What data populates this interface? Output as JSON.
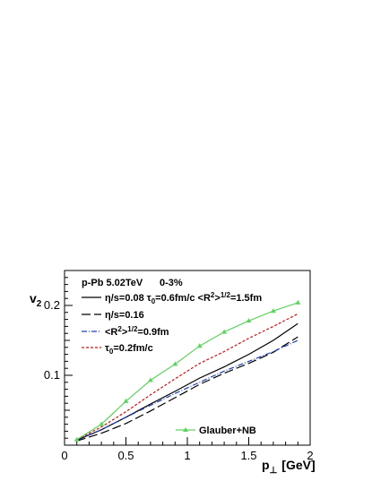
{
  "chart_data": {
    "type": "line",
    "header": {
      "system": "p-Pb 5.02TeV",
      "centrality": "0-3%"
    },
    "xlabel": "p",
    "xlabel_sub": "⊥",
    "xlabel_unit": "[GeV]",
    "ylabel": "v",
    "ylabel_sub": "2",
    "xlim": [
      0,
      2
    ],
    "ylim": [
      0,
      0.25
    ],
    "x_ticks": [
      0,
      0.5,
      1,
      1.5,
      2
    ],
    "x_tick_labels": [
      "0",
      "0.5",
      "1",
      "1.5",
      "2"
    ],
    "y_ticks": [
      0.1,
      0.2
    ],
    "y_tick_labels": [
      "0.1",
      "0.2"
    ],
    "legend": [
      {
        "id": "l1",
        "text": "η/s=0.08  τ",
        "sub": "0",
        "text2": "=0.6fm/c  <R",
        "sup": "2",
        "text3": ">",
        "sup2": "1/2",
        "text4": "=1.5fm"
      },
      {
        "id": "l2",
        "text": "η/s=0.16"
      },
      {
        "id": "l3",
        "text": "<R",
        "sup": "2",
        "text3": ">",
        "sup2": "1/2",
        "text4": "=0.9fm"
      },
      {
        "id": "l4",
        "text": "τ",
        "sub": "0",
        "text2": "=0.2fm/c"
      }
    ],
    "legend_glauber": "Glauber+NB",
    "series": [
      {
        "key": "s1",
        "color": "#000000",
        "dash": "",
        "x": [
          0.1,
          0.3,
          0.5,
          0.7,
          0.9,
          1.1,
          1.3,
          1.5,
          1.7,
          1.9
        ],
        "y": [
          0.007,
          0.022,
          0.04,
          0.059,
          0.077,
          0.096,
          0.112,
          0.13,
          0.15,
          0.174
        ]
      },
      {
        "key": "s2",
        "color": "#000000",
        "dash": "10,4",
        "x": [
          0.1,
          0.3,
          0.5,
          0.7,
          0.9,
          1.1,
          1.3,
          1.5,
          1.7,
          1.9
        ],
        "y": [
          0.006,
          0.017,
          0.031,
          0.049,
          0.068,
          0.087,
          0.103,
          0.117,
          0.133,
          0.155
        ]
      },
      {
        "key": "s3",
        "color": "#1f3fbf",
        "dash": "6,2,1,2",
        "x": [
          0.1,
          0.3,
          0.5,
          0.7,
          0.9,
          1.1,
          1.3,
          1.5,
          1.7,
          1.9
        ],
        "y": [
          0.008,
          0.022,
          0.04,
          0.057,
          0.074,
          0.09,
          0.106,
          0.12,
          0.134,
          0.15
        ]
      },
      {
        "key": "s4",
        "color": "#d01010",
        "dash": "3,2",
        "x": [
          0.1,
          0.3,
          0.5,
          0.7,
          0.9,
          1.1,
          1.3,
          1.5,
          1.7,
          1.9
        ],
        "y": [
          0.008,
          0.026,
          0.048,
          0.072,
          0.095,
          0.117,
          0.134,
          0.153,
          0.17,
          0.188
        ]
      },
      {
        "key": "glauber",
        "color": "#5fd35f",
        "dash": "",
        "marker": "triangle",
        "x": [
          0.1,
          0.3,
          0.5,
          0.7,
          0.9,
          1.1,
          1.3,
          1.5,
          1.7,
          1.9
        ],
        "y": [
          0.008,
          0.03,
          0.063,
          0.093,
          0.116,
          0.142,
          0.162,
          0.178,
          0.192,
          0.204
        ]
      }
    ]
  }
}
